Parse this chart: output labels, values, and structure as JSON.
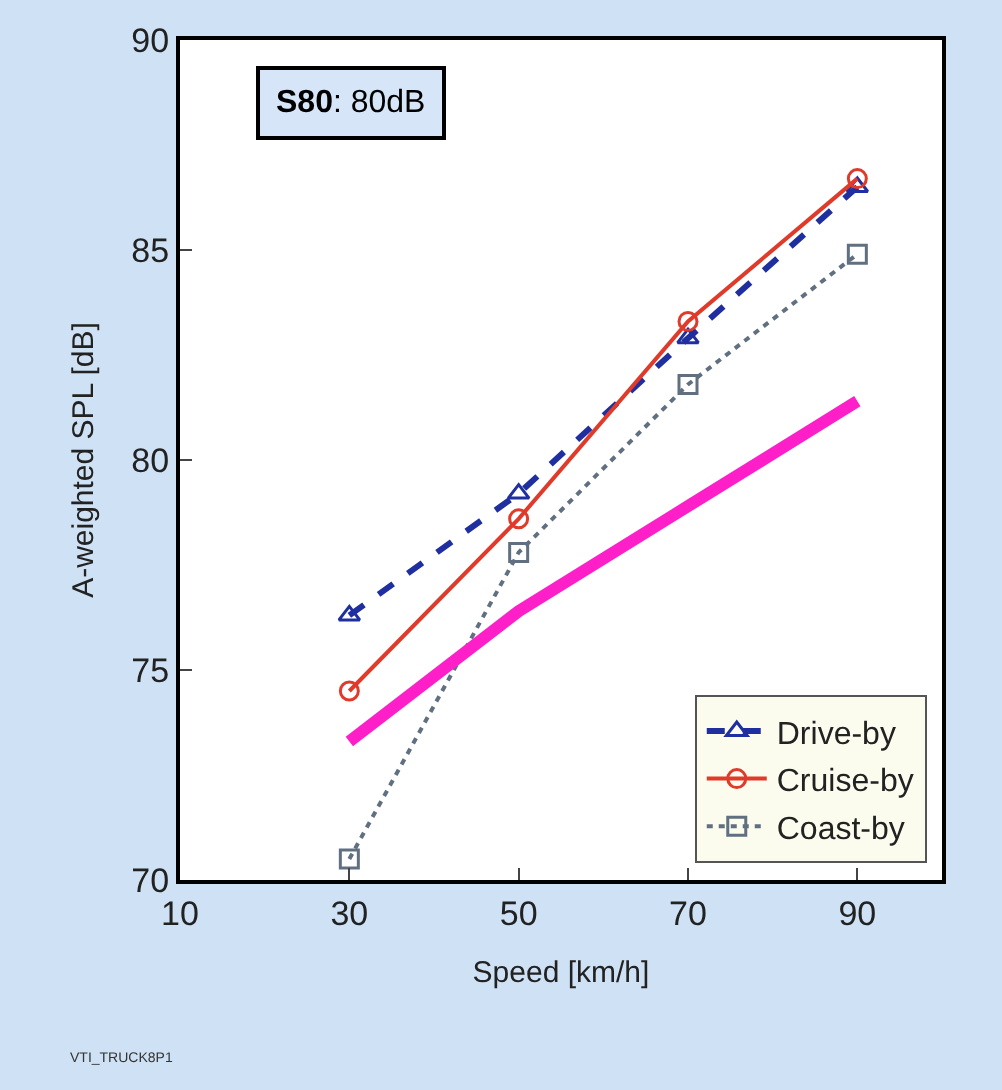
{
  "chart_data": {
    "type": "line",
    "title": "S80: 80dB",
    "xlabel": "Speed [km/h]",
    "ylabel": "A-weighted SPL [dB]",
    "x": [
      30,
      50,
      70,
      90
    ],
    "series": [
      {
        "name": "Drive-by",
        "color": "#1f2f9f",
        "values": [
          76.3,
          79.2,
          82.9,
          86.5
        ],
        "marker": "triangle",
        "line_style": "dashed"
      },
      {
        "name": "Cruise-by",
        "color": "#e03a2a",
        "values": [
          74.5,
          78.6,
          83.3,
          86.7
        ],
        "marker": "circle",
        "line_style": "solid"
      },
      {
        "name": "Coast-by",
        "color": "#607080",
        "values": [
          70.5,
          77.8,
          81.8,
          84.9
        ],
        "marker": "square",
        "line_style": "dotted"
      },
      {
        "color": "#ff1fc8",
        "values": [
          73.3,
          76.4,
          78.9,
          81.4
        ],
        "marker": "none",
        "line_style": "solid"
      }
    ],
    "xlim": [
      10,
      100
    ],
    "xticks": [
      10,
      30,
      50,
      70,
      90
    ],
    "ylim": [
      70,
      90
    ],
    "yticks": [
      70,
      75,
      80,
      85,
      90
    ],
    "legend": "bottom right",
    "annotations": [
      "VTI_TRUCK8P1"
    ]
  }
}
